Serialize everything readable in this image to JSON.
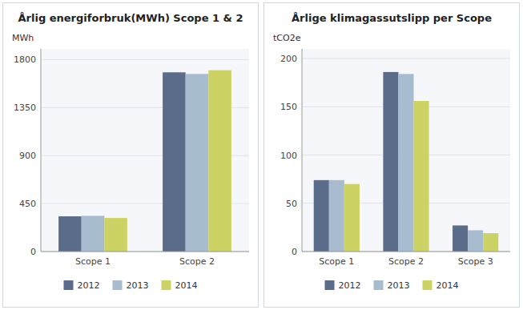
{
  "chart_data": [
    {
      "type": "bar",
      "title": "Årlig energiforbruk(MWh) Scope 1 & 2",
      "ylabel": "MWh",
      "categories": [
        "Scope 1",
        "Scope 2"
      ],
      "series": [
        {
          "name": "2012",
          "color": "#5b6b8a",
          "values": [
            330,
            1680
          ]
        },
        {
          "name": "2013",
          "color": "#a8bcd0",
          "values": [
            335,
            1665
          ]
        },
        {
          "name": "2014",
          "color": "#cdd264",
          "values": [
            315,
            1700
          ]
        }
      ],
      "ylim": [
        0,
        1900
      ],
      "yticks": [
        0,
        450,
        900,
        1350,
        1800
      ],
      "grid": true,
      "legend": "bottom"
    },
    {
      "type": "bar",
      "title": "Årlige klimagassutslipp per Scope",
      "ylabel": "tCO2e",
      "categories": [
        "Scope 1",
        "Scope 2",
        "Scope 3"
      ],
      "series": [
        {
          "name": "2012",
          "color": "#5b6b8a",
          "values": [
            74,
            186,
            27
          ]
        },
        {
          "name": "2013",
          "color": "#a8bcd0",
          "values": [
            74,
            184,
            22
          ]
        },
        {
          "name": "2014",
          "color": "#cdd264",
          "values": [
            70,
            156,
            19
          ]
        }
      ],
      "ylim": [
        0,
        210
      ],
      "yticks": [
        0,
        50,
        100,
        150,
        200
      ],
      "grid": true,
      "legend": "bottom"
    }
  ]
}
